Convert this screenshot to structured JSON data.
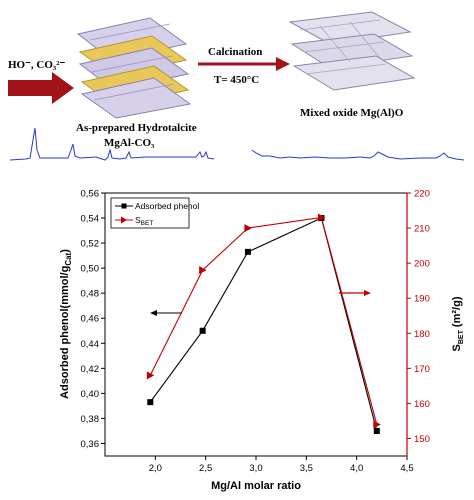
{
  "scheme": {
    "reactant_label": "HO⁻, CO₃²⁻",
    "hydrotalcite_label": "As-prepared Hydrotalcite",
    "hydrotalcite_formula": "MgAl-CO₃",
    "process_label": "Calcination",
    "temperature_label": "T= 450°C",
    "product_label": "Mixed oxide Mg(Al)O"
  },
  "chart_data": {
    "type": "line",
    "xlabel": "Mg/Al molar ratio",
    "ylabel": "Adsorbed phenol(mmol/g",
    "ylabel_sub": "Cat",
    "ylabel_end": ")",
    "y2label": "S",
    "y2label_sub": "BET",
    "y2label_end": " (m²/g)",
    "xlim": [
      1.5,
      4.5
    ],
    "ylim": [
      0.35,
      0.56
    ],
    "y2lim": [
      145,
      220
    ],
    "xticks": [
      "2,0",
      "2,5",
      "3,0",
      "3,5",
      "4,0",
      "4,5"
    ],
    "xtick_values": [
      2.0,
      2.5,
      3.0,
      3.5,
      4.0,
      4.5
    ],
    "yticks": [
      "0,36",
      "0,38",
      "0,40",
      "0,42",
      "0,44",
      "0,46",
      "0,48",
      "0,50",
      "0,52",
      "0,54",
      "0,56"
    ],
    "ytick_values": [
      0.36,
      0.38,
      0.4,
      0.42,
      0.44,
      0.46,
      0.48,
      0.5,
      0.52,
      0.54,
      0.56
    ],
    "y2ticks": [
      "150",
      "160",
      "170",
      "180",
      "190",
      "200",
      "210",
      "220"
    ],
    "y2tick_values": [
      150,
      160,
      170,
      180,
      190,
      200,
      210,
      220
    ],
    "series": [
      {
        "name": "Adsorbed phenol",
        "axis": "left",
        "color": "#000000",
        "marker": "square",
        "x": [
          1.95,
          2.47,
          2.92,
          3.65,
          4.2
        ],
        "y": [
          0.393,
          0.45,
          0.513,
          0.54,
          0.37
        ]
      },
      {
        "name": "S",
        "name_sub": "BET",
        "axis": "right",
        "color": "#c00000",
        "marker": "triangle-right",
        "x": [
          1.95,
          2.47,
          2.92,
          3.65,
          4.2
        ],
        "y": [
          168,
          198,
          210,
          213,
          154
        ]
      }
    ],
    "legend_position": "top-left",
    "grid": false
  }
}
